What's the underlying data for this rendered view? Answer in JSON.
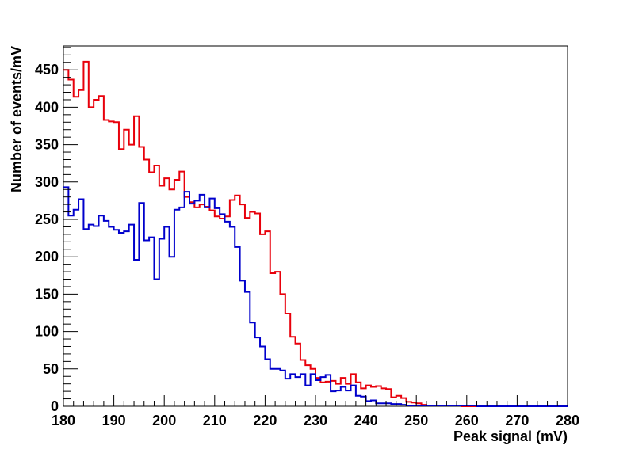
{
  "chart_data": {
    "type": "line",
    "step": true,
    "xlabel": "Peak signal (mV)",
    "ylabel": "Number of events/mV",
    "xlim": [
      180,
      280
    ],
    "ylim": [
      0,
      482
    ],
    "x_ticks": [
      180,
      190,
      200,
      210,
      220,
      230,
      240,
      250,
      260,
      270,
      280
    ],
    "y_ticks": [
      0,
      50,
      100,
      150,
      200,
      250,
      300,
      350,
      400,
      450
    ],
    "grid": false,
    "bin_width": 1,
    "bin_start": 180,
    "series": [
      {
        "color": "#e8000b",
        "values": [
          450,
          437,
          414,
          423,
          461,
          400,
          410,
          415,
          383,
          381,
          380,
          344,
          370,
          350,
          388,
          347,
          330,
          313,
          322,
          295,
          305,
          290,
          303,
          314,
          280,
          273,
          266,
          270,
          267,
          262,
          254,
          251,
          254,
          276,
          282,
          270,
          252,
          260,
          258,
          230,
          234,
          178,
          180,
          150,
          124,
          93,
          84,
          62,
          55,
          50,
          38,
          32,
          33,
          34,
          30,
          38,
          30,
          43,
          32,
          24,
          28,
          26,
          27,
          24,
          23,
          12,
          14,
          11,
          6,
          5,
          4,
          2,
          1,
          1,
          1,
          1,
          1,
          1,
          1,
          0,
          0,
          0,
          0,
          0,
          0,
          0,
          0,
          0,
          0,
          0,
          0,
          0,
          0,
          0,
          0,
          0,
          0,
          0,
          0,
          0
        ]
      },
      {
        "color": "#0000cc",
        "values": [
          293,
          255,
          263,
          277,
          237,
          243,
          241,
          255,
          248,
          240,
          236,
          232,
          234,
          243,
          196,
          272,
          222,
          226,
          170,
          224,
          240,
          200,
          263,
          266,
          287,
          271,
          275,
          283,
          266,
          278,
          265,
          257,
          247,
          240,
          213,
          168,
          153,
          112,
          92,
          80,
          63,
          50,
          50,
          48,
          37,
          43,
          39,
          43,
          28,
          43,
          35,
          39,
          42,
          20,
          21,
          26,
          21,
          28,
          14,
          13,
          7,
          8,
          4,
          4,
          4,
          3,
          3,
          2,
          1,
          1,
          1,
          1,
          1,
          1,
          1,
          1,
          1,
          1,
          1,
          1,
          1,
          1,
          0,
          0,
          0,
          0,
          0,
          0,
          0,
          0,
          0,
          0,
          0,
          0,
          0,
          0,
          0,
          0,
          0,
          0
        ]
      }
    ]
  }
}
